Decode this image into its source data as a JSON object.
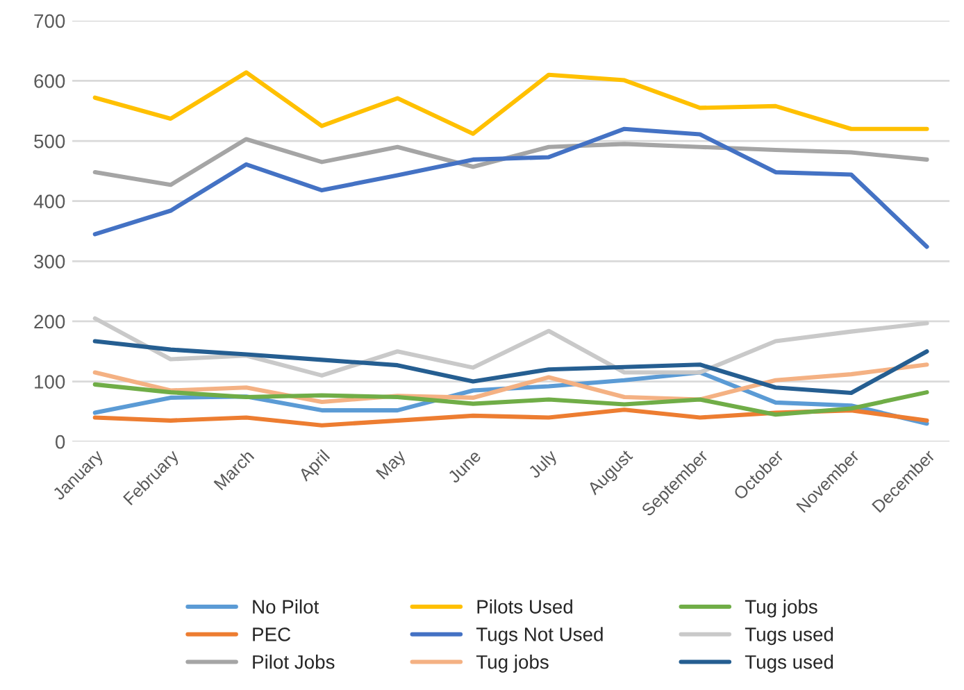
{
  "chart_data": {
    "type": "line",
    "categories": [
      "January",
      "February",
      "March",
      "April",
      "May",
      "June",
      "July",
      "August",
      "September",
      "October",
      "November",
      "December"
    ],
    "ylim": [
      0,
      700
    ],
    "yticks": [
      0,
      100,
      200,
      300,
      400,
      500,
      600,
      700
    ],
    "grid": "y",
    "legend": "bottom",
    "marker": "none",
    "series": [
      {
        "name": "No Pilot",
        "color": "#5b9bd5",
        "values": [
          48,
          73,
          75,
          52,
          52,
          85,
          92,
          102,
          115,
          65,
          60,
          30
        ]
      },
      {
        "name": "PEC",
        "color": "#ed7d31",
        "values": [
          40,
          35,
          40,
          27,
          35,
          43,
          40,
          53,
          40,
          48,
          52,
          35
        ]
      },
      {
        "name": "Pilot Jobs",
        "color": "#a5a5a5",
        "values": [
          448,
          427,
          503,
          465,
          490,
          457,
          490,
          495,
          490,
          485,
          481,
          469
        ]
      },
      {
        "name": "Pilots Used",
        "color": "#ffc000",
        "values": [
          572,
          537,
          614,
          525,
          571,
          512,
          610,
          601,
          555,
          558,
          520,
          520
        ]
      },
      {
        "name": "Tugs Not Used",
        "color": "#4472c4",
        "values": [
          345,
          384,
          461,
          418,
          443,
          469,
          473,
          520,
          511,
          448,
          444,
          324
        ]
      },
      {
        "name": "Tug jobs",
        "color": "#f4b183",
        "values": [
          115,
          85,
          90,
          66,
          76,
          73,
          107,
          74,
          70,
          102,
          112,
          128
        ]
      },
      {
        "name": "Tug jobs",
        "color": "#70ad47",
        "values": [
          95,
          82,
          74,
          77,
          74,
          63,
          70,
          62,
          70,
          45,
          55,
          82
        ]
      },
      {
        "name": "Tugs used",
        "color": "#c9c9c9",
        "values": [
          205,
          137,
          143,
          110,
          150,
          123,
          184,
          115,
          115,
          167,
          183,
          197
        ]
      },
      {
        "name": "Tugs used",
        "color": "#255e91",
        "values": [
          167,
          153,
          145,
          136,
          127,
          100,
          120,
          124,
          128,
          90,
          81,
          150
        ]
      }
    ]
  }
}
